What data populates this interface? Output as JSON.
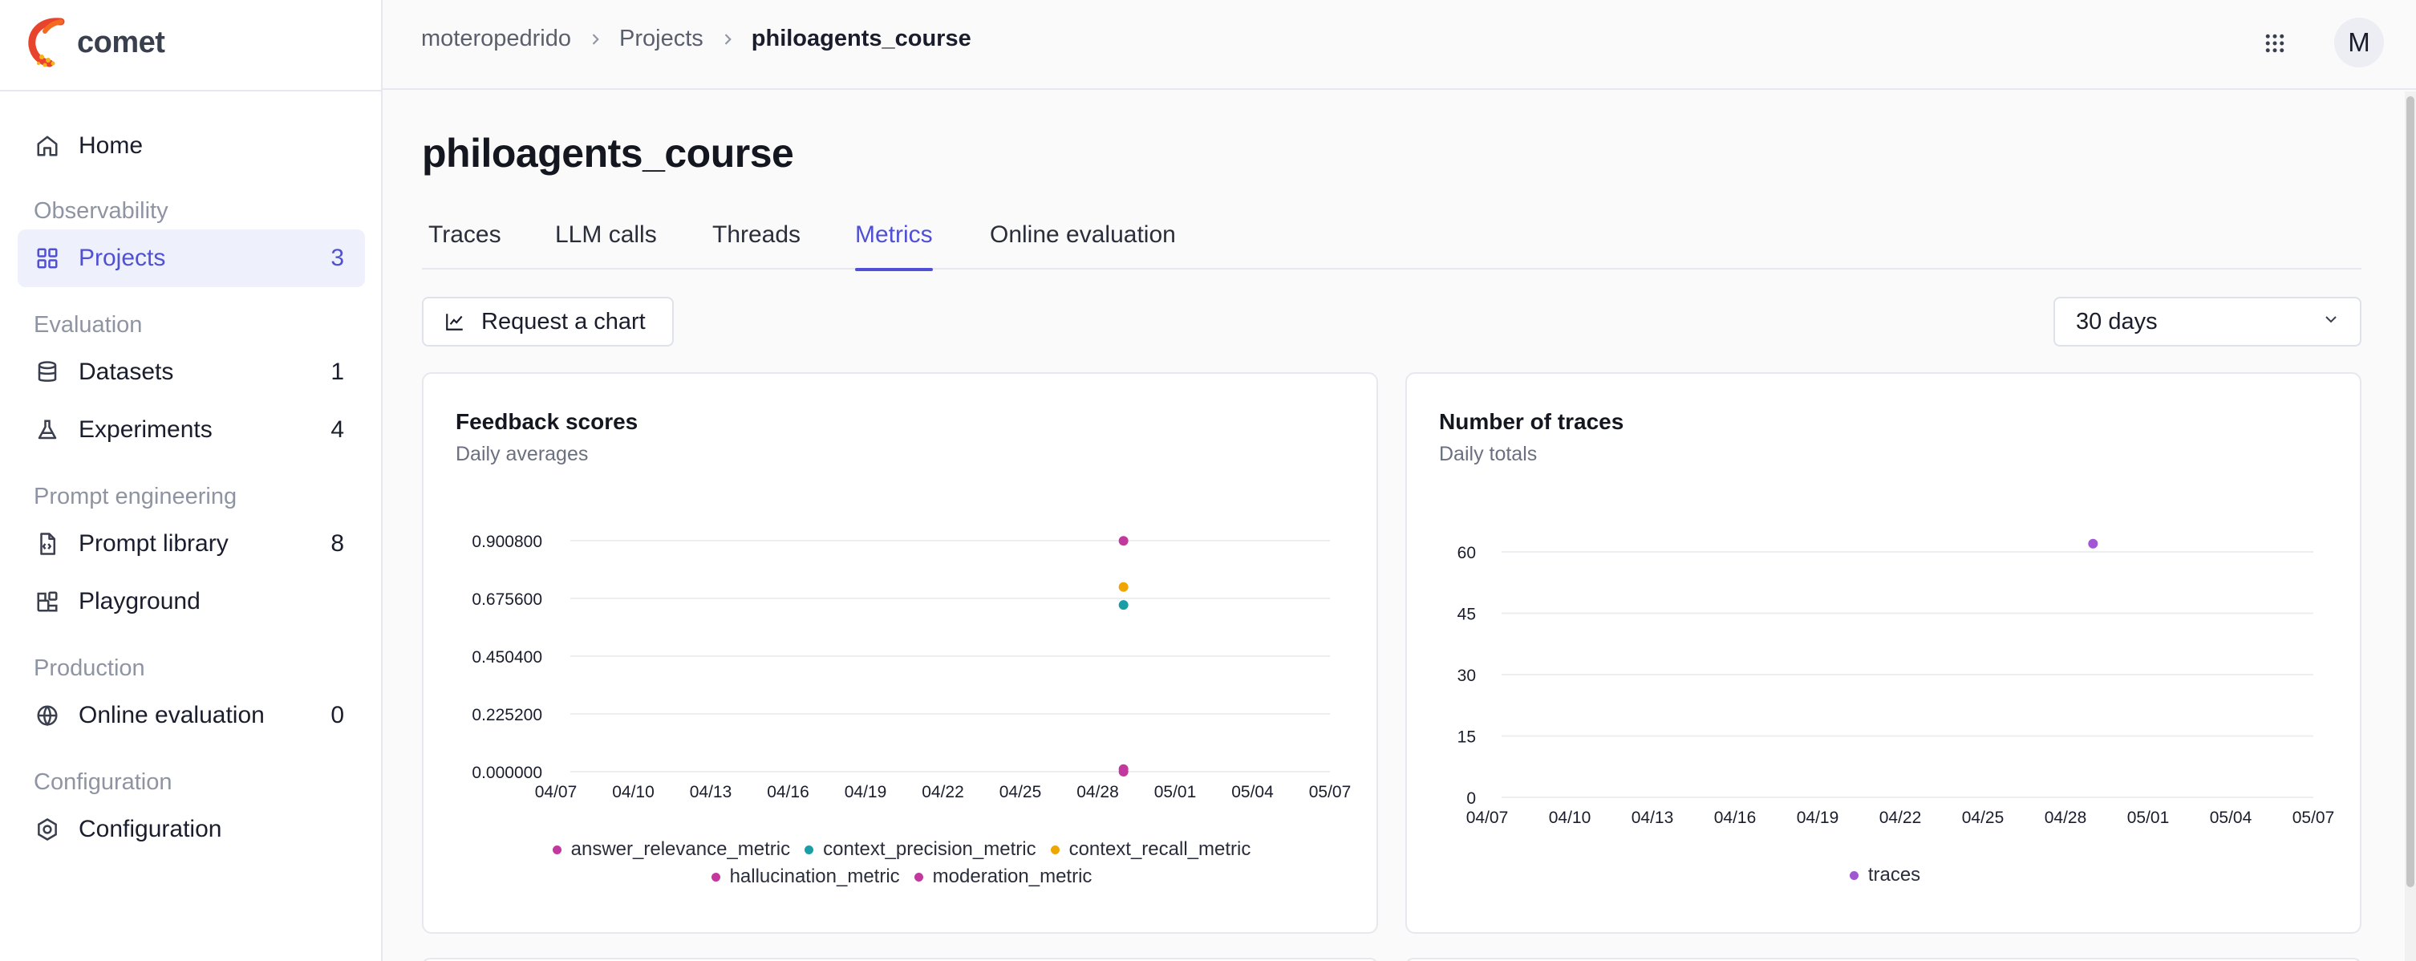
{
  "app": {
    "name": "comet"
  },
  "sidebar": {
    "home": {
      "label": "Home"
    },
    "sections": [
      {
        "title": "Observability",
        "items": [
          {
            "label": "Projects",
            "count": "3"
          }
        ]
      },
      {
        "title": "Evaluation",
        "items": [
          {
            "label": "Datasets",
            "count": "1"
          },
          {
            "label": "Experiments",
            "count": "4"
          }
        ]
      },
      {
        "title": "Prompt engineering",
        "items": [
          {
            "label": "Prompt library",
            "count": "8"
          },
          {
            "label": "Playground",
            "count": ""
          }
        ]
      },
      {
        "title": "Production",
        "items": [
          {
            "label": "Online evaluation",
            "count": "0"
          }
        ]
      },
      {
        "title": "Configuration",
        "items": [
          {
            "label": "Configuration",
            "count": ""
          }
        ]
      }
    ]
  },
  "header": {
    "breadcrumb": [
      "moteropedrido",
      "Projects",
      "philoagents_course"
    ],
    "avatar_initial": "M"
  },
  "page": {
    "title": "philoagents_course",
    "tabs": [
      "Traces",
      "LLM calls",
      "Threads",
      "Metrics",
      "Online evaluation"
    ],
    "active_tab": "Metrics",
    "request_chart_label": "Request a chart",
    "range_select": "30 days"
  },
  "chart_data": [
    {
      "type": "scatter",
      "title": "Feedback scores",
      "subtitle": "Daily averages",
      "x_ticks": [
        "04/07",
        "04/10",
        "04/13",
        "04/16",
        "04/19",
        "04/22",
        "04/25",
        "04/28",
        "05/01",
        "05/04",
        "05/07"
      ],
      "y_ticks": [
        "0.000000",
        "0.225200",
        "0.450400",
        "0.675600",
        "0.900800"
      ],
      "ylim": [
        0,
        0.9008
      ],
      "series": [
        {
          "name": "answer_relevance_metric",
          "color": "#c2389f",
          "points": [
            {
              "x": "04/29",
              "y": 0.0
            }
          ]
        },
        {
          "name": "context_precision_metric",
          "color": "#1a9ea6",
          "points": [
            {
              "x": "04/29",
              "y": 0.65
            }
          ]
        },
        {
          "name": "context_recall_metric",
          "color": "#f0a500",
          "points": [
            {
              "x": "04/29",
              "y": 0.72
            }
          ]
        },
        {
          "name": "hallucination_metric",
          "color": "#c2389f",
          "points": [
            {
              "x": "04/29",
              "y": 0.01
            }
          ]
        },
        {
          "name": "moderation_metric",
          "color": "#c2389f",
          "points": [
            {
              "x": "04/29",
              "y": 0.9
            }
          ]
        }
      ],
      "legend_rows": [
        [
          "answer_relevance_metric",
          "context_precision_metric",
          "context_recall_metric"
        ],
        [
          "hallucination_metric",
          "moderation_metric"
        ]
      ]
    },
    {
      "type": "scatter",
      "title": "Number of traces",
      "subtitle": "Daily totals",
      "x_ticks": [
        "04/07",
        "04/10",
        "04/13",
        "04/16",
        "04/19",
        "04/22",
        "04/25",
        "04/28",
        "05/01",
        "05/04",
        "05/07"
      ],
      "y_ticks": [
        "0",
        "15",
        "30",
        "45",
        "60"
      ],
      "ylim": [
        0,
        60
      ],
      "series": [
        {
          "name": "traces",
          "color": "#a157d4",
          "points": [
            {
              "x": "04/29",
              "y": 62
            }
          ]
        }
      ],
      "legend_rows": [
        [
          "traces"
        ]
      ]
    }
  ]
}
